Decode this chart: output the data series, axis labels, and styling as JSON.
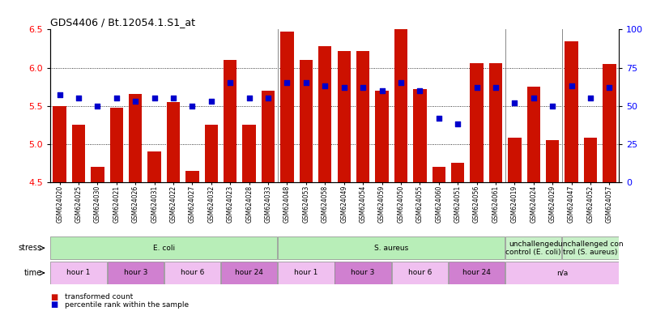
{
  "title": "GDS4406 / Bt.12054.1.S1_at",
  "samples": [
    "GSM624020",
    "GSM624025",
    "GSM624030",
    "GSM624021",
    "GSM624026",
    "GSM624031",
    "GSM624022",
    "GSM624027",
    "GSM624032",
    "GSM624023",
    "GSM624028",
    "GSM624033",
    "GSM624048",
    "GSM624053",
    "GSM624058",
    "GSM624049",
    "GSM624054",
    "GSM624059",
    "GSM624050",
    "GSM624055",
    "GSM624060",
    "GSM624051",
    "GSM624056",
    "GSM624061",
    "GSM624019",
    "GSM624024",
    "GSM624029",
    "GSM624047",
    "GSM624052",
    "GSM624057"
  ],
  "bar_values": [
    5.5,
    5.25,
    4.7,
    5.47,
    5.65,
    4.9,
    5.55,
    4.65,
    5.25,
    6.1,
    5.25,
    5.7,
    6.47,
    6.1,
    6.28,
    6.22,
    6.22,
    5.7,
    6.5,
    5.72,
    4.7,
    4.75,
    6.06,
    6.06,
    5.08,
    5.75,
    5.05,
    6.35,
    5.08,
    6.05
  ],
  "percentile_values": [
    57,
    55,
    50,
    55,
    53,
    55,
    55,
    50,
    53,
    65,
    55,
    55,
    65,
    65,
    63,
    62,
    62,
    60,
    65,
    60,
    42,
    38,
    62,
    62,
    52,
    55,
    50,
    63,
    55,
    62
  ],
  "ylim_left": [
    4.5,
    6.5
  ],
  "ylim_right": [
    0,
    100
  ],
  "yticks_left": [
    4.5,
    5.0,
    5.5,
    6.0,
    6.5
  ],
  "yticks_right": [
    0,
    25,
    50,
    75,
    100
  ],
  "bar_color": "#cc1100",
  "dot_color": "#0000cc",
  "stress_groups": [
    {
      "label": "E. coli",
      "start": 0,
      "end": 11,
      "color": "#b8eeb8"
    },
    {
      "label": "S. aureus",
      "start": 12,
      "end": 23,
      "color": "#b8eeb8"
    },
    {
      "label": "unchallenged\ncontrol (E. coli)",
      "start": 24,
      "end": 26,
      "color": "#c8f0c8"
    },
    {
      "label": "unchallenged con\ntrol (S. aureus)",
      "start": 27,
      "end": 29,
      "color": "#c8f0c8"
    }
  ],
  "time_groups": [
    {
      "label": "hour 1",
      "start": 0,
      "end": 2,
      "color": "#f0c0f0"
    },
    {
      "label": "hour 3",
      "start": 3,
      "end": 5,
      "color": "#d080d0"
    },
    {
      "label": "hour 6",
      "start": 6,
      "end": 8,
      "color": "#f0c0f0"
    },
    {
      "label": "hour 24",
      "start": 9,
      "end": 11,
      "color": "#d080d0"
    },
    {
      "label": "hour 1",
      "start": 12,
      "end": 14,
      "color": "#f0c0f0"
    },
    {
      "label": "hour 3",
      "start": 15,
      "end": 17,
      "color": "#d080d0"
    },
    {
      "label": "hour 6",
      "start": 18,
      "end": 20,
      "color": "#f0c0f0"
    },
    {
      "label": "hour 24",
      "start": 21,
      "end": 23,
      "color": "#d080d0"
    },
    {
      "label": "n/a",
      "start": 24,
      "end": 29,
      "color": "#f0c0f0"
    }
  ],
  "grid_lines": [
    5.0,
    5.5,
    6.0
  ],
  "separators": [
    11.5,
    23.5,
    26.5
  ]
}
